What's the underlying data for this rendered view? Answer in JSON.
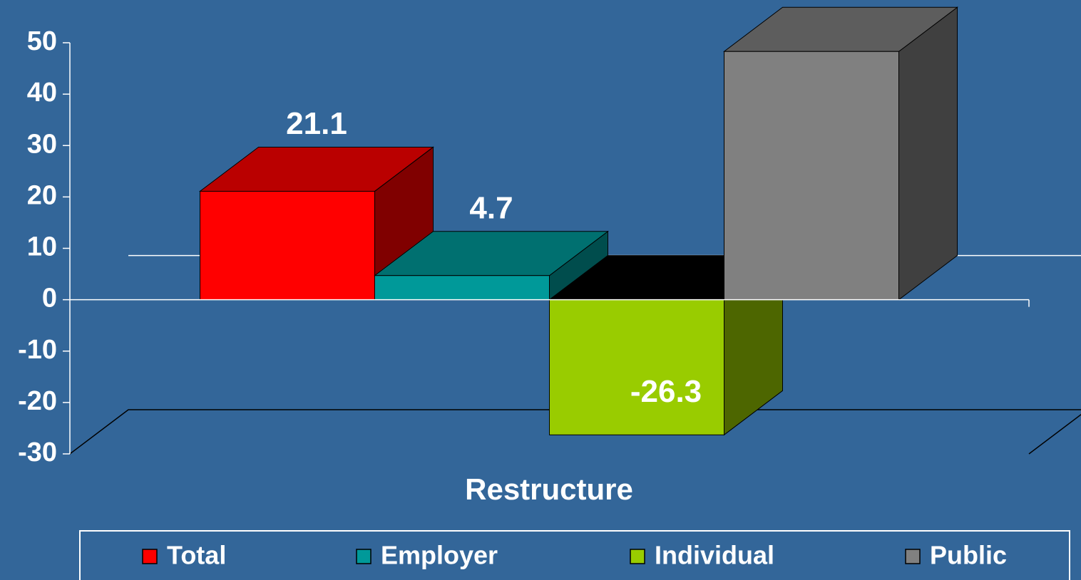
{
  "chart_data": {
    "type": "bar3d",
    "categories": [
      "Restructure"
    ],
    "xlabel": "Restructure",
    "series": [
      {
        "name": "Total",
        "color": "#ff0000",
        "values": [
          21.1
        ]
      },
      {
        "name": "Employer",
        "color": "#009999",
        "values": [
          4.7
        ]
      },
      {
        "name": "Individual",
        "color": "#99cc00",
        "values": [
          -26.3
        ]
      },
      {
        "name": "Public",
        "color": "#808080",
        "values": [
          48.3
        ]
      }
    ],
    "ylim": [
      -30,
      50
    ],
    "yticks": [
      -30,
      -20,
      -10,
      0,
      10,
      20,
      30,
      40,
      50
    ],
    "legend": "bottom"
  }
}
